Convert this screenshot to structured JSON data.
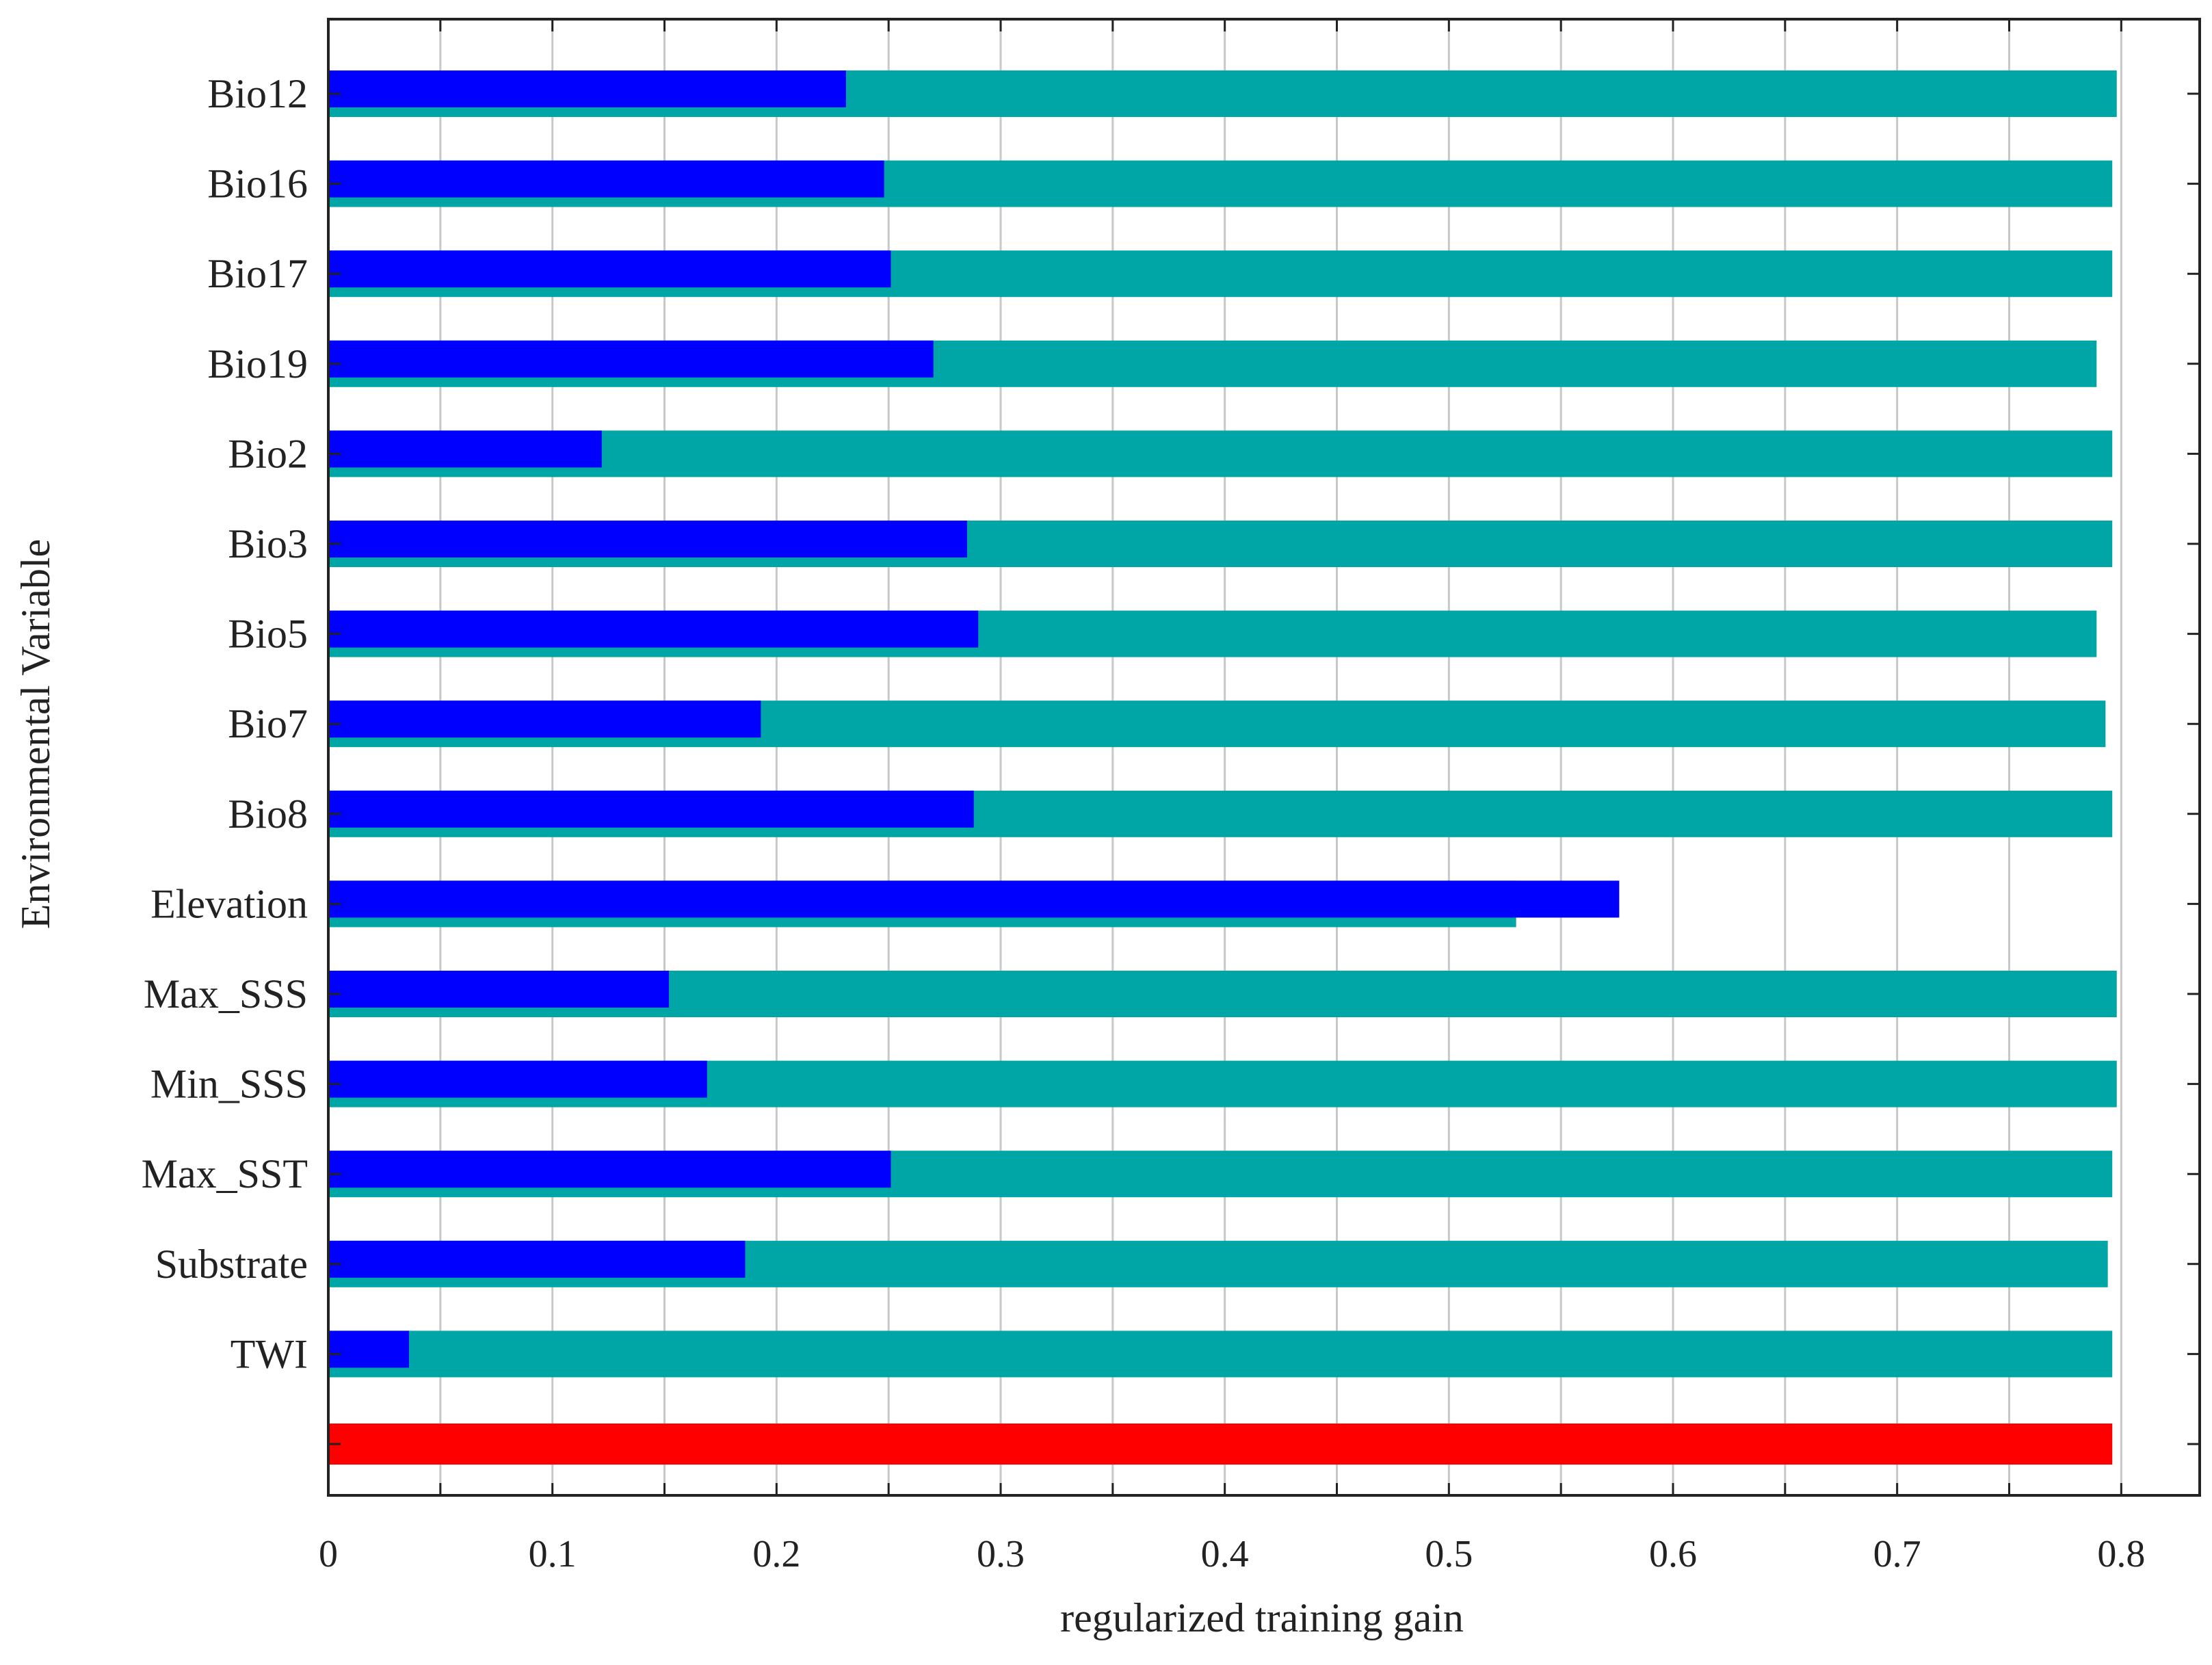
{
  "chart_data": {
    "type": "bar",
    "orientation": "horizontal",
    "title": "",
    "xlabel": "regularized training gain",
    "ylabel": "Environmental Variable",
    "xlim": [
      0,
      0.835
    ],
    "xticks": [
      "0",
      "0.1",
      "0.2",
      "0.3",
      "0.4",
      "0.5",
      "0.6",
      "0.7",
      "0.8"
    ],
    "grid": true,
    "legend": "none",
    "categories": [
      "Bio12",
      "Bio16",
      "Bio17",
      "Bio19",
      "Bio2",
      "Bio3",
      "Bio5",
      "Bio7",
      "Bio8",
      "Elevation",
      "Max_SSS",
      "Min_SSS",
      "Max_SST",
      "Substrate",
      "TWI",
      ""
    ],
    "series": [
      {
        "color": "#00a6a6",
        "values": [
          0.798,
          0.796,
          0.796,
          0.789,
          0.796,
          0.796,
          0.789,
          0.793,
          0.796,
          0.53,
          0.798,
          0.798,
          0.796,
          0.794,
          0.796,
          null
        ]
      },
      {
        "color": "#0000ff",
        "values": [
          0.231,
          0.248,
          0.251,
          0.27,
          0.122,
          0.285,
          0.29,
          0.193,
          0.288,
          0.576,
          0.152,
          0.169,
          0.251,
          0.186,
          0.036,
          null
        ]
      },
      {
        "color": "#ff0000",
        "values": [
          null,
          null,
          null,
          null,
          null,
          null,
          null,
          null,
          null,
          null,
          null,
          null,
          null,
          null,
          null,
          0.796
        ]
      }
    ]
  }
}
